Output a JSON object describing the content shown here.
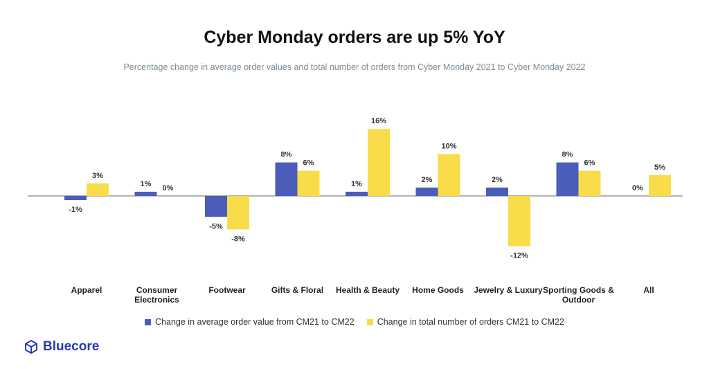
{
  "title": "Cyber Monday orders are up 5% YoY",
  "subtitle": "Percentage change in average order values and total number of orders from Cyber Monday 2021 to Cyber Monday 2022",
  "brand": {
    "name": "Bluecore",
    "icon": "cube-logo-icon"
  },
  "colors": {
    "aov": "#4a5db8",
    "orders": "#f9dc4a",
    "axis": "#666666"
  },
  "legend": [
    {
      "label": "Change in average order value from CM21 to CM22",
      "color": "#4a5db8"
    },
    {
      "label": "Change in total number of orders CM21 to CM22",
      "color": "#f9dc4a"
    }
  ],
  "chart_data": {
    "type": "bar",
    "categories": [
      [
        "Apparel"
      ],
      [
        "Consumer",
        "Electronics"
      ],
      [
        "Footwear"
      ],
      [
        "Gifts & Floral"
      ],
      [
        "Health & Beauty"
      ],
      [
        "Home Goods"
      ],
      [
        "Jewelry & Luxury"
      ],
      [
        "Sporting Goods &",
        "Outdoor"
      ],
      [
        "All"
      ]
    ],
    "series": [
      {
        "name": "Change in average order value from CM21 to CM22",
        "values": [
          -1,
          1,
          -5,
          8,
          1,
          2,
          2,
          8,
          0
        ],
        "labels": [
          "-1%",
          "1%",
          "-5%",
          "8%",
          "1%",
          "2%",
          "2%",
          "8%",
          "0%"
        ]
      },
      {
        "name": "Change in total number of orders CM21 to CM22",
        "values": [
          3,
          0,
          -8,
          6,
          16,
          10,
          -12,
          6,
          5
        ],
        "labels": [
          "3%",
          "0%",
          "-8%",
          "6%",
          "16%",
          "10%",
          "-12%",
          "6%",
          "5%"
        ]
      }
    ],
    "ylim": [
      -12,
      16
    ],
    "grid": false,
    "legend_position": "bottom"
  }
}
